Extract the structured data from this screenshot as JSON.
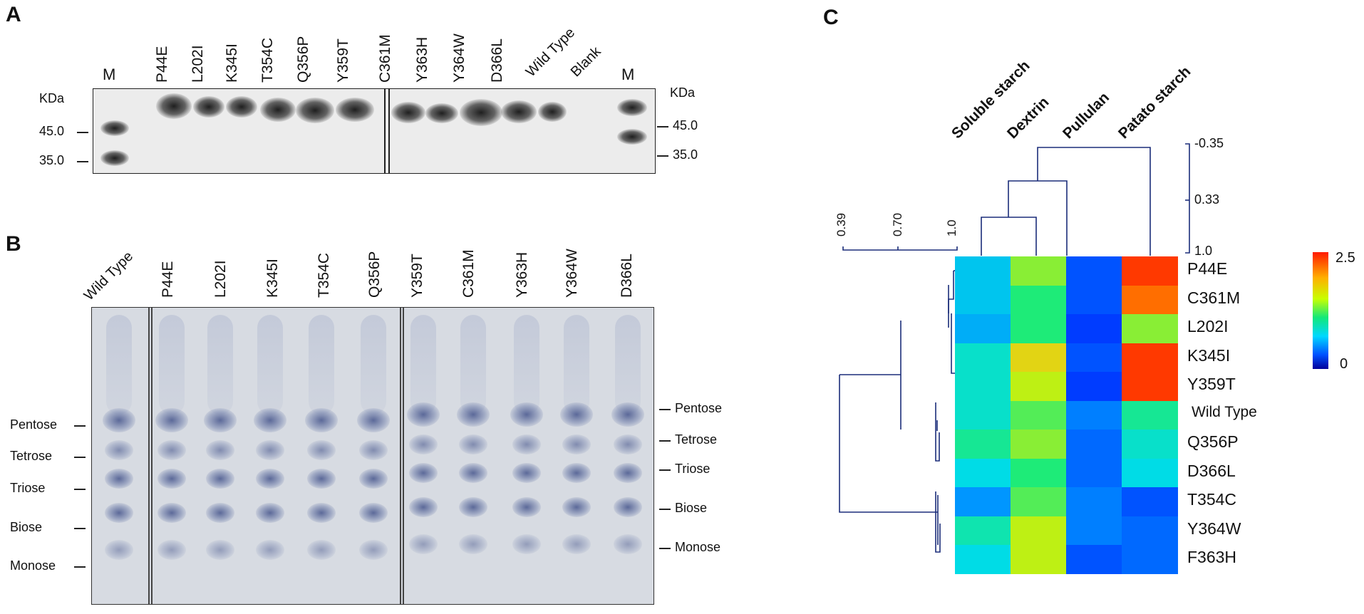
{
  "panel_a": {
    "letter": "A",
    "lanes": [
      "M",
      "P44E",
      "L202I",
      "K345I",
      "T354C",
      "Q356P",
      "Y359T",
      "C361M",
      "Y363H",
      "Y364W",
      "D366L",
      "Wild Type",
      "Blank",
      "M"
    ],
    "left_unit": "KDa",
    "right_unit": "KDa",
    "left_marks": [
      "45.0",
      "35.0"
    ],
    "right_marks": [
      "45.0",
      "35.0"
    ]
  },
  "panel_b": {
    "letter": "B",
    "lanes": [
      "Wild Type",
      "P44E",
      "L202I",
      "K345I",
      "T354C",
      "Q356P",
      "Y359T",
      "C361M",
      "Y363H",
      "Y364W",
      "D366L"
    ],
    "left_labels": [
      "Pentose",
      "Tetrose",
      "Triose",
      "Biose",
      "Monose"
    ],
    "right_labels": [
      "Pentose",
      "Tetrose",
      "Triose",
      "Biose",
      "Monose"
    ]
  },
  "panel_c": {
    "letter": "C",
    "col_scale": [
      "-0.35",
      "0.33",
      "1.0"
    ],
    "row_scale": [
      "0.39",
      "0.70",
      "1.0"
    ],
    "colorbar": {
      "max": "2.5",
      "min": "0"
    },
    "colors": {
      "low": "#0000a0",
      "high": "#ff2000"
    }
  },
  "chart_data": {
    "type": "heatmap",
    "columns": [
      "Soluble starch",
      "Dextrin",
      "Pullulan",
      "Patato starch"
    ],
    "rows": [
      "P44E",
      "C361M",
      "L202I",
      "K345I",
      "Y359T",
      "Wild Type",
      "Q356P",
      "D366L",
      "T354C",
      "Y364W",
      "F363H"
    ],
    "values": [
      [
        0.9,
        1.6,
        0.4,
        2.4
      ],
      [
        0.9,
        1.4,
        0.4,
        2.2
      ],
      [
        0.8,
        1.4,
        0.3,
        1.6
      ],
      [
        1.1,
        1.9,
        0.4,
        2.4
      ],
      [
        1.1,
        1.7,
        0.3,
        2.4
      ],
      [
        1.1,
        1.5,
        0.6,
        1.3
      ],
      [
        1.3,
        1.6,
        0.5,
        1.1
      ],
      [
        1.0,
        1.4,
        0.5,
        1.0
      ],
      [
        0.7,
        1.5,
        0.6,
        0.4
      ],
      [
        1.2,
        1.7,
        0.6,
        0.5
      ],
      [
        1.0,
        1.7,
        0.4,
        0.5
      ]
    ],
    "zlim": [
      0,
      2.5
    ]
  }
}
